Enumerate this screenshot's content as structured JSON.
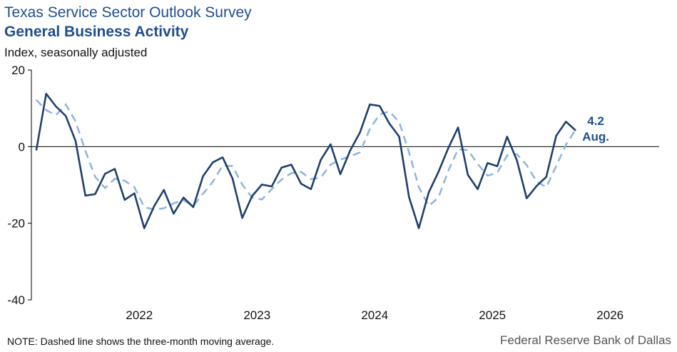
{
  "header": {
    "title": "Texas Service Sector Outlook Survey",
    "subtitle": "General Business Activity",
    "ylabel": "Index, seasonally adjusted"
  },
  "footer": {
    "note": "NOTE: Dashed line shows the three-month  moving average.",
    "source": "Federal Reserve Bank of Dallas"
  },
  "colors": {
    "main": "#1f3f6e",
    "avg": "#8fb4de",
    "text": "#1f4e8c"
  },
  "chart_data": {
    "type": "line",
    "ylim": [
      -40,
      20
    ],
    "yticks": [
      20,
      0,
      -20,
      -40
    ],
    "ytick_labels": [
      "20",
      "0",
      "-20",
      "-40"
    ],
    "x_start": 2021.583,
    "x_end": 2026.917,
    "xticks": [
      {
        "label": "2022",
        "x": 2022.0
      },
      {
        "label": "2023",
        "x": 2023.0
      },
      {
        "label": "2024",
        "x": 2024.0
      },
      {
        "label": "2025",
        "x": 2025.0
      },
      {
        "label": "2026",
        "x": 2026.0
      }
    ],
    "start_month": "2021-08",
    "series": [
      {
        "style": "solid",
        "values": [
          -1.0,
          13.8,
          10.5,
          8.0,
          1.5,
          -12.8,
          -12.4,
          -7.1,
          -5.8,
          -13.9,
          -12.2,
          -21.3,
          -15.6,
          -11.3,
          -17.5,
          -13.3,
          -15.8,
          -7.7,
          -4.1,
          -2.8,
          -8.3,
          -18.6,
          -12.9,
          -9.9,
          -10.4,
          -5.5,
          -4.7,
          -9.7,
          -11.1,
          -3.5,
          0.6,
          -7.2,
          -1.0,
          3.7,
          11.0,
          10.6,
          6.0,
          2.6,
          -13.2,
          -21.3,
          -12.0,
          -6.6,
          -0.4,
          5.0,
          -7.4,
          -11.1,
          -4.3,
          -5.1,
          2.6,
          -3.6,
          -13.5,
          -10.3,
          -7.9,
          2.8,
          6.5,
          4.2
        ]
      },
      {
        "style": "dashed",
        "values": [
          12.2,
          9.5,
          8.2,
          11.0,
          6.6,
          -1.1,
          -7.9,
          -10.8,
          -8.4,
          -8.9,
          -10.6,
          -15.8,
          -16.4,
          -16.1,
          -14.8,
          -14.0,
          -15.5,
          -12.3,
          -9.2,
          -4.9,
          -5.1,
          -9.9,
          -13.3,
          -13.8,
          -11.1,
          -8.6,
          -6.9,
          -6.6,
          -8.5,
          -8.1,
          -4.7,
          -3.4,
          -2.5,
          -1.5,
          4.6,
          8.4,
          9.2,
          6.4,
          -1.5,
          -10.6,
          -15.5,
          -13.3,
          -6.3,
          -0.7,
          -0.9,
          -4.5,
          -7.6,
          -6.8,
          -2.3,
          -2.0,
          -4.8,
          -9.1,
          -10.6,
          -5.1,
          0.5,
          4.5
        ]
      }
    ],
    "annotation": {
      "value": "4.2",
      "month": "Aug."
    }
  }
}
